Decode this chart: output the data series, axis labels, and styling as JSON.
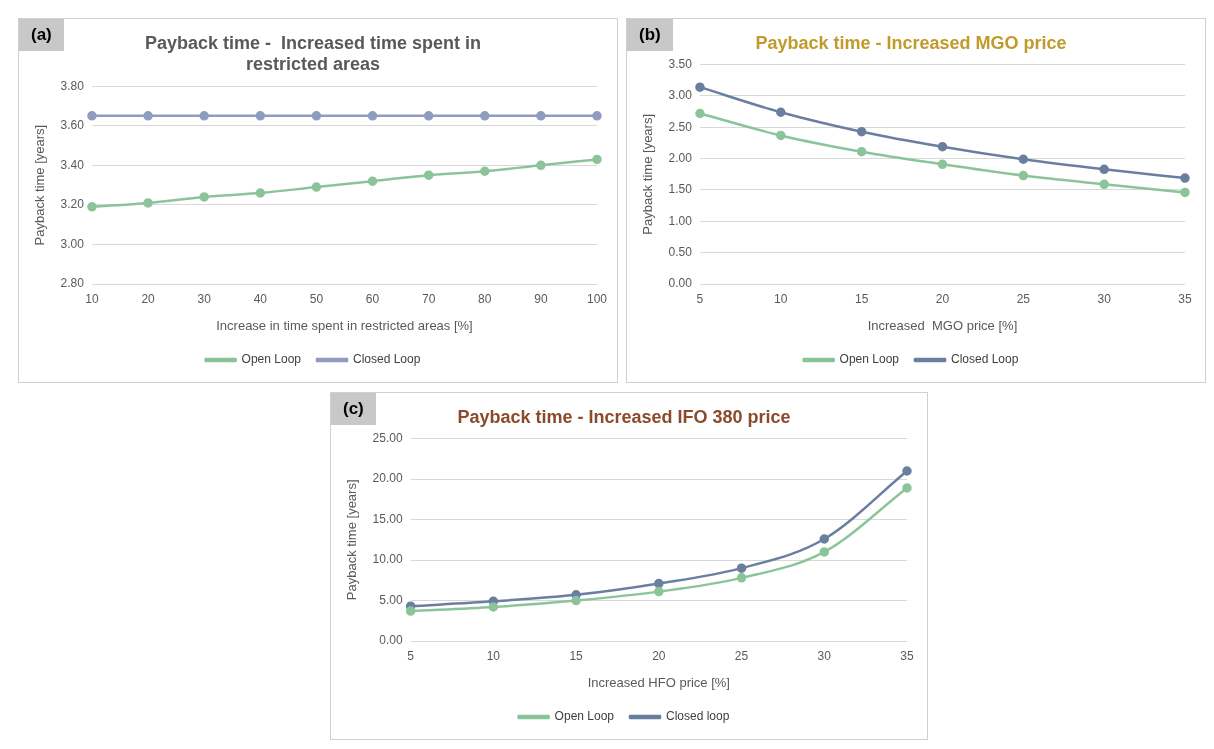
{
  "chart_data": [
    {
      "type": "line",
      "title": "Payback time -  Increased time spent in restricted areas",
      "xlabel": "Increase in time spent in restricted areas [%]",
      "ylabel": "Payback time [years]",
      "annotations": [
        "(a)"
      ],
      "categories": [
        "10",
        "20",
        "30",
        "40",
        "50",
        "60",
        "70",
        "80",
        "90",
        "100"
      ],
      "series": [
        {
          "name": "Open Loop",
          "color": "#8cc49a",
          "values": [
            3.19,
            3.21,
            3.24,
            3.26,
            3.29,
            3.32,
            3.35,
            3.37,
            3.4,
            3.43
          ]
        },
        {
          "name": "Closed Loop",
          "color": "#8f9bbf",
          "values": [
            3.65,
            3.65,
            3.65,
            3.65,
            3.65,
            3.65,
            3.65,
            3.65,
            3.65,
            3.65
          ]
        }
      ],
      "ylim": [
        2.8,
        3.8
      ],
      "yticks": [
        {
          "value": 2.8,
          "label": "2.80"
        },
        {
          "value": 3.0,
          "label": "3.00"
        },
        {
          "value": 3.2,
          "label": "3.20"
        },
        {
          "value": 3.4,
          "label": "3.40"
        },
        {
          "value": 3.6,
          "label": "3.60"
        },
        {
          "value": 3.8,
          "label": "3.80"
        }
      ],
      "grid": "y",
      "legend": "bottom",
      "marker": "circle",
      "line_style": "solid"
    },
    {
      "type": "line",
      "title": "Payback time - Increased MGO price",
      "xlabel": "Increased  MGO price [%]",
      "ylabel": "Payback time [years]",
      "annotations": [
        "(b)"
      ],
      "categories": [
        "5",
        "10",
        "15",
        "20",
        "25",
        "30",
        "35"
      ],
      "series": [
        {
          "name": "Open Loop",
          "color": "#8cc49a",
          "values": [
            2.72,
            2.37,
            2.11,
            1.91,
            1.73,
            1.59,
            1.46
          ]
        },
        {
          "name": "Closed Loop",
          "color": "#6a7fa0",
          "values": [
            3.14,
            2.74,
            2.43,
            2.19,
            1.99,
            1.83,
            1.69
          ]
        }
      ],
      "ylim": [
        0,
        3.5
      ],
      "yticks": [
        {
          "value": 0,
          "label": "0.00"
        },
        {
          "value": 0.5,
          "label": "0.50"
        },
        {
          "value": 1,
          "label": "1.00"
        },
        {
          "value": 1.5,
          "label": "1.50"
        },
        {
          "value": 2,
          "label": "2.00"
        },
        {
          "value": 2.5,
          "label": "2.50"
        },
        {
          "value": 3,
          "label": "3.00"
        },
        {
          "value": 3.5,
          "label": "3.50"
        }
      ],
      "grid": "y",
      "legend": "bottom",
      "marker": "circle",
      "line_style": "solid"
    },
    {
      "type": "line",
      "title": "Payback time - Increased IFO 380 price",
      "xlabel": "Increased HFO price [%]",
      "ylabel": "Payback time [years]",
      "annotations": [
        "(c)"
      ],
      "categories": [
        "5",
        "10",
        "15",
        "20",
        "25",
        "30",
        "35"
      ],
      "series": [
        {
          "name": "Open Loop",
          "color": "#8cc49a",
          "values": [
            3.7,
            4.2,
            5.0,
            6.1,
            7.8,
            11.0,
            18.9
          ]
        },
        {
          "name": "Closed loop",
          "color": "#6a7fa0",
          "values": [
            4.3,
            4.9,
            5.7,
            7.1,
            9.0,
            12.6,
            21.0
          ]
        }
      ],
      "ylim": [
        0,
        25
      ],
      "yticks": [
        {
          "value": 0,
          "label": "0.00"
        },
        {
          "value": 5,
          "label": "5.00"
        },
        {
          "value": 10,
          "label": "10.00"
        },
        {
          "value": 15,
          "label": "15.00"
        },
        {
          "value": 20,
          "label": "20.00"
        },
        {
          "value": 25,
          "label": "25.00"
        }
      ],
      "grid": "y",
      "legend": "bottom",
      "marker": "circle",
      "line_style": "solid"
    }
  ]
}
